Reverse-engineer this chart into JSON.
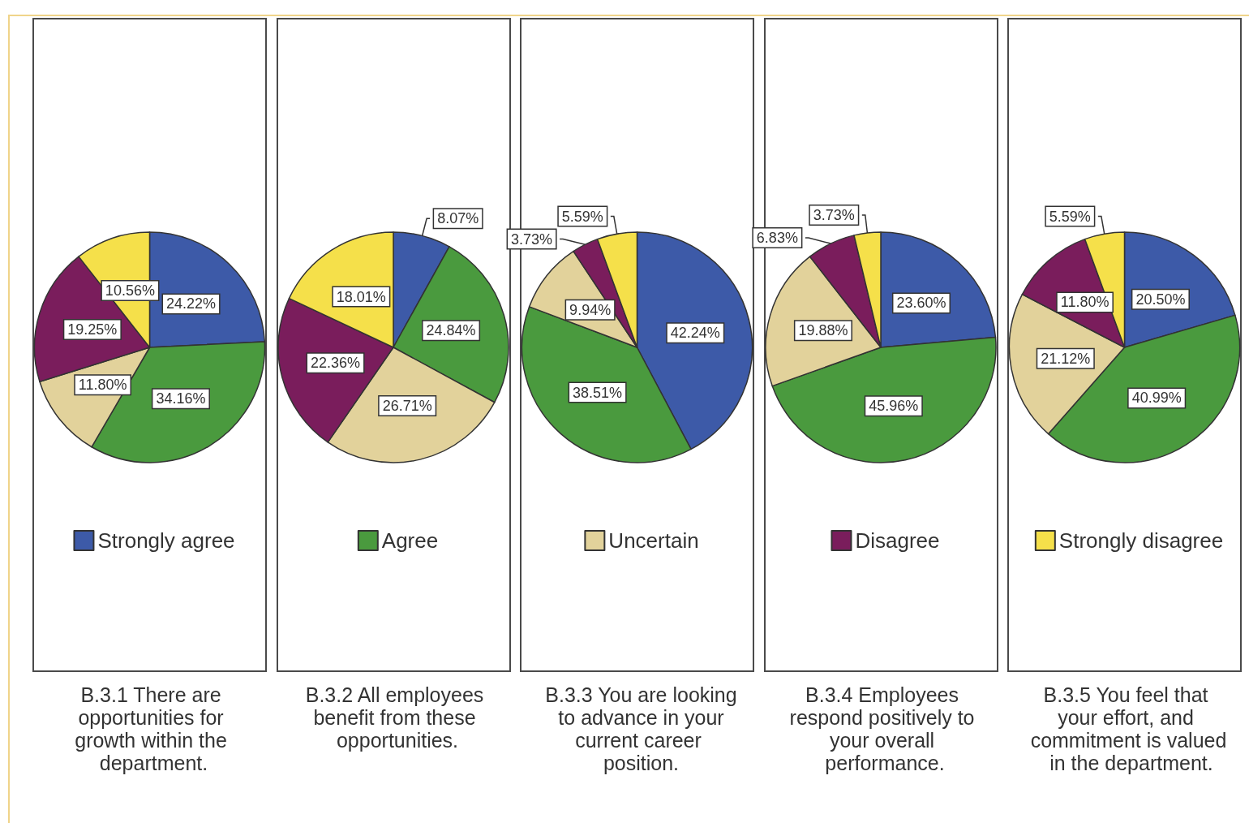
{
  "chart_data": {
    "type": "pie",
    "categories": [
      "Strongly agree",
      "Agree",
      "Uncertain",
      "Disagree",
      "Strongly disagree"
    ],
    "colors": [
      "#3d5aa8",
      "#4a9a3e",
      "#e2d29b",
      "#7a1d5c",
      "#f5e04a"
    ],
    "legend": "bottom",
    "series": [
      {
        "name": "B.3.1 There are opportunities for growth within the department.",
        "values": [
          24.22,
          34.16,
          11.8,
          19.25,
          10.56
        ],
        "value_labels": [
          "24.22%",
          "34.16%",
          "11.80%",
          "19.25%",
          "10.56%"
        ]
      },
      {
        "name": "B.3.2 All employees benefit from these opportunities.",
        "values": [
          8.07,
          24.84,
          26.71,
          22.36,
          18.01
        ],
        "value_labels": [
          "8.07%",
          "24.84%",
          "26.71%",
          "22.36%",
          "18.01%"
        ]
      },
      {
        "name": "B.3.3 You are looking to advance in your current career position.",
        "values": [
          42.24,
          38.51,
          9.94,
          3.73,
          5.59
        ],
        "value_labels": [
          "42.24%",
          "38.51%",
          "9.94%",
          "3.73%",
          "5.59%"
        ]
      },
      {
        "name": "B.3.4 Employees respond positively to your overall performance.",
        "values": [
          23.6,
          45.96,
          19.88,
          6.83,
          3.73
        ],
        "value_labels": [
          "23.60%",
          "45.96%",
          "19.88%",
          "6.83%",
          "3.73%"
        ]
      },
      {
        "name": "B.3.5 You feel that your effort, and commitment is valued in the department.",
        "values": [
          20.5,
          40.99,
          21.12,
          11.8,
          5.59
        ],
        "value_labels": [
          "20.50%",
          "40.99%",
          "21.12%",
          "11.80%",
          "5.59%"
        ]
      }
    ]
  }
}
